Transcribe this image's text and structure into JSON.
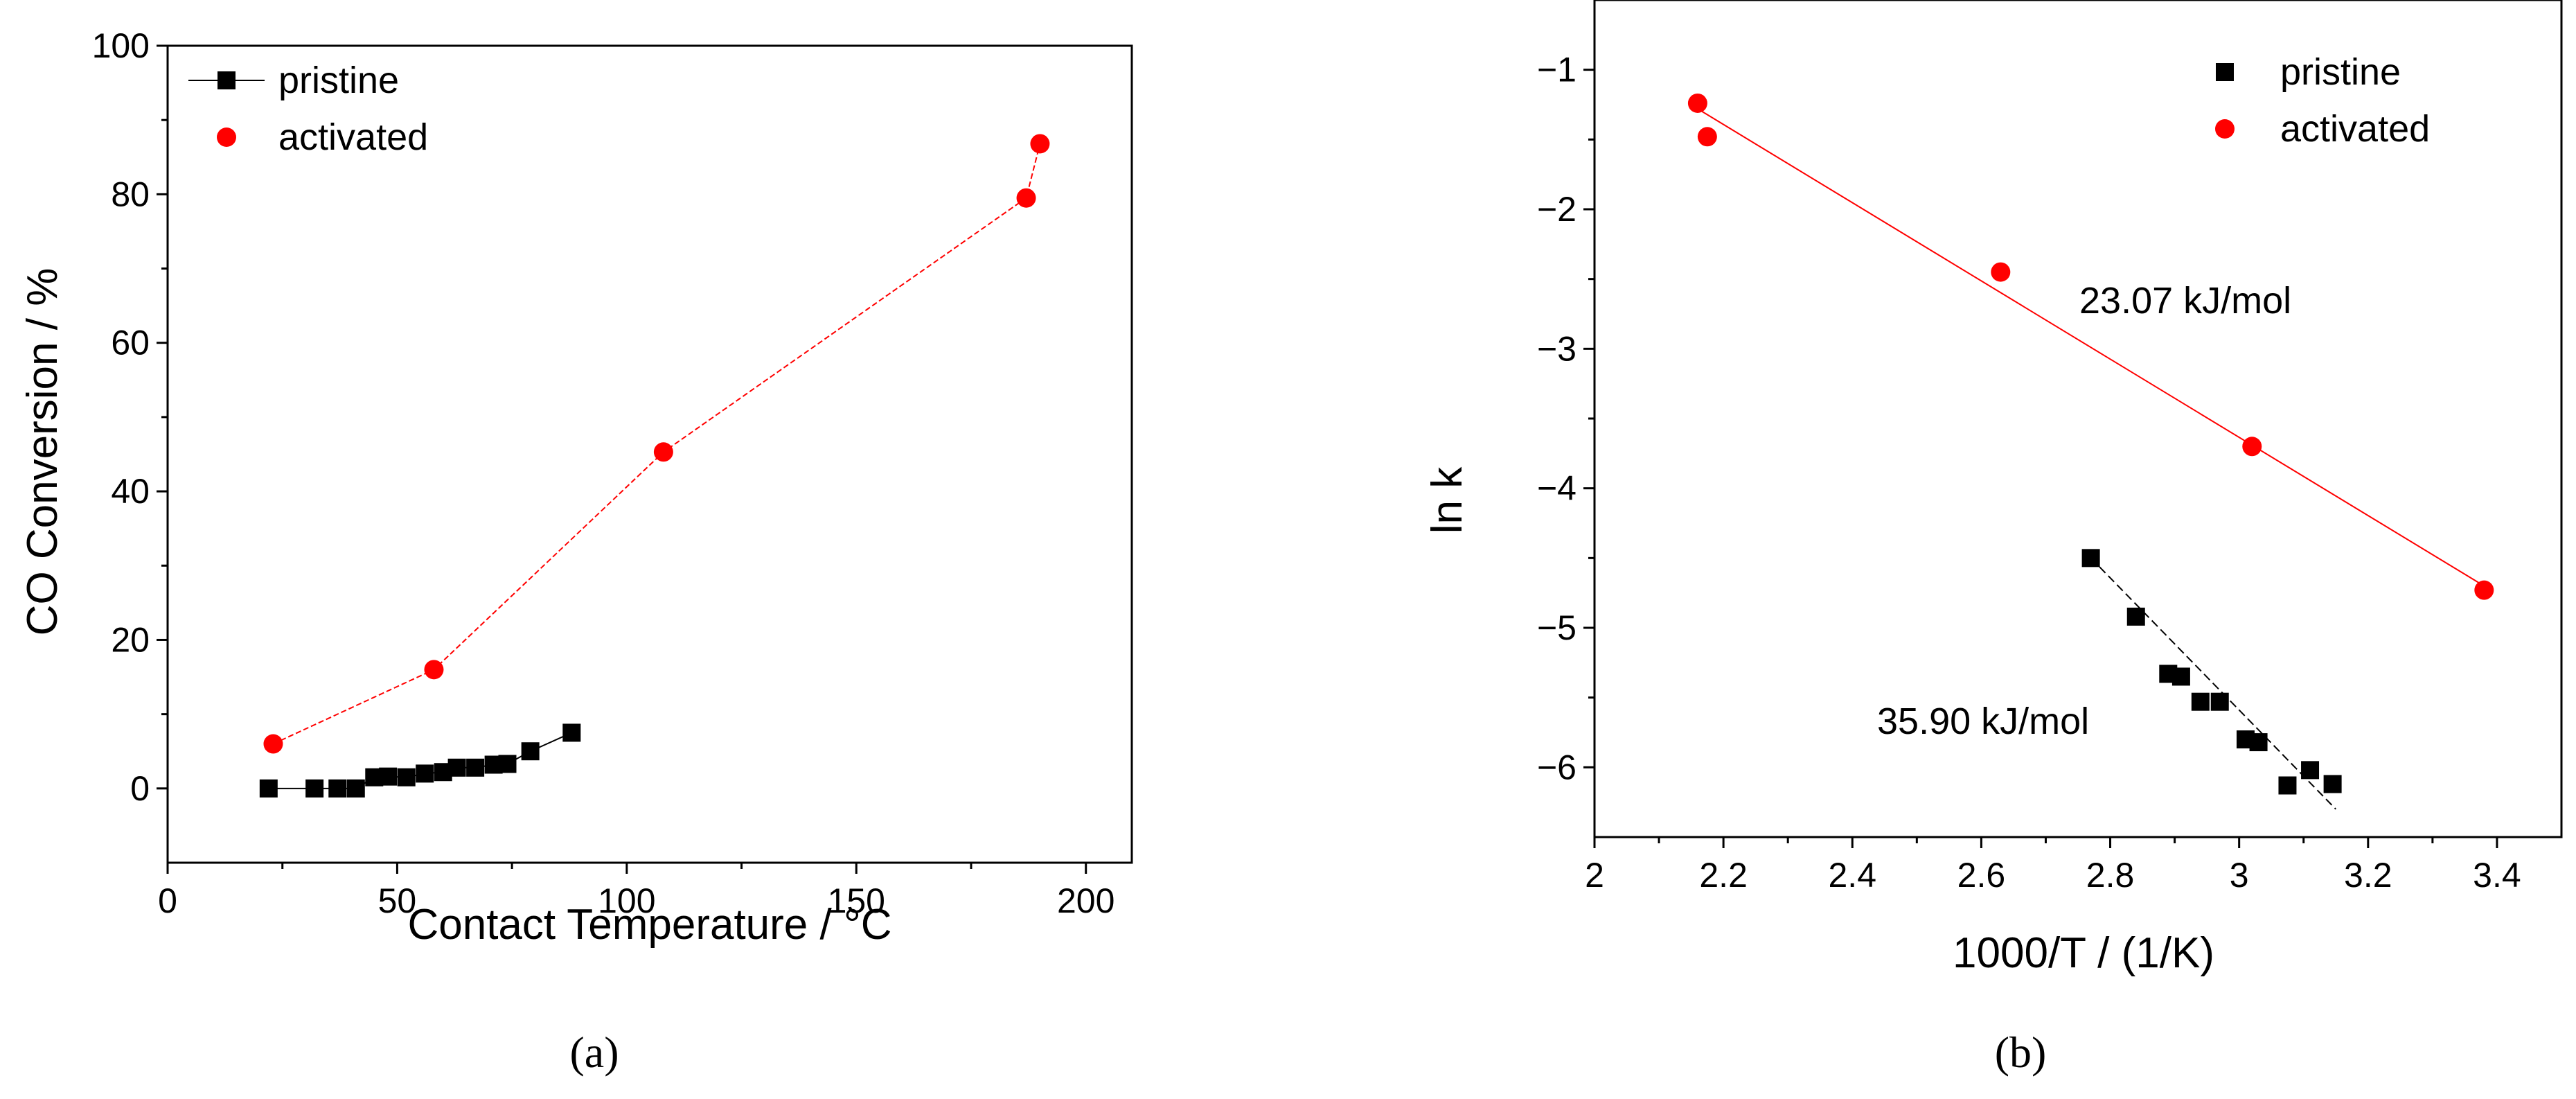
{
  "chart_data": [
    {
      "type": "scatter",
      "panel_label": "(a)",
      "xlabel": "Contact Temperature / °C",
      "ylabel": "CO Conversion / %",
      "xlim": [
        0,
        210
      ],
      "ylim": [
        -10,
        100
      ],
      "x_ticks": [
        0,
        50,
        100,
        150,
        200
      ],
      "y_ticks": [
        0,
        20,
        40,
        60,
        80,
        100
      ],
      "legend_position": "top-left",
      "series": [
        {
          "name": "pristine",
          "color": "#000000",
          "marker": "square",
          "line": "solid",
          "x": [
            22,
            32,
            37,
            41,
            45,
            48,
            52,
            56,
            60,
            63,
            67,
            71,
            74,
            79,
            88
          ],
          "y": [
            0.0,
            0.0,
            0.0,
            0.0,
            1.5,
            1.6,
            1.5,
            2.0,
            2.2,
            2.8,
            2.8,
            3.2,
            3.3,
            5.0,
            7.5
          ]
        },
        {
          "name": "activated",
          "color": "#ff0000",
          "marker": "circle",
          "line": "dotted",
          "x": [
            23,
            58,
            108,
            187,
            190
          ],
          "y": [
            6.0,
            16.0,
            45.3,
            79.5,
            86.8
          ]
        }
      ]
    },
    {
      "type": "scatter",
      "panel_label": "(b)",
      "xlabel": "1000/T / (1/K)",
      "ylabel": "ln k",
      "xlim": [
        2.0,
        3.5
      ],
      "ylim": [
        -6.5,
        -0.5
      ],
      "x_ticks": [
        2,
        2.2,
        2.4,
        2.6,
        2.8,
        3,
        3.2,
        3.4
      ],
      "y_ticks": [
        -1,
        -2,
        -3,
        -4,
        -5,
        -6
      ],
      "legend_position": "top-right",
      "series": [
        {
          "name": "pristine",
          "color": "#000000",
          "marker": "square",
          "x": [
            2.77,
            2.84,
            2.89,
            2.91,
            2.94,
            2.97,
            3.01,
            3.03,
            3.075,
            3.11,
            3.145
          ],
          "y": [
            -4.5,
            -4.92,
            -5.33,
            -5.35,
            -5.53,
            -5.53,
            -5.8,
            -5.82,
            -6.13,
            -6.02,
            -6.12
          ],
          "fit": {
            "x": [
              2.77,
              3.15
            ],
            "y": [
              -4.5,
              -6.3
            ],
            "label": "35.90 kJ/mol"
          }
        },
        {
          "name": "activated",
          "color": "#ff0000",
          "marker": "circle",
          "x": [
            2.16,
            2.175,
            2.63,
            3.02,
            3.38
          ],
          "y": [
            -1.24,
            -1.48,
            -2.45,
            -3.7,
            -4.73
          ],
          "fit": {
            "x": [
              2.16,
              3.38
            ],
            "y": [
              -1.28,
              -4.7
            ],
            "label": "23.07 kJ/mol"
          }
        }
      ]
    }
  ]
}
